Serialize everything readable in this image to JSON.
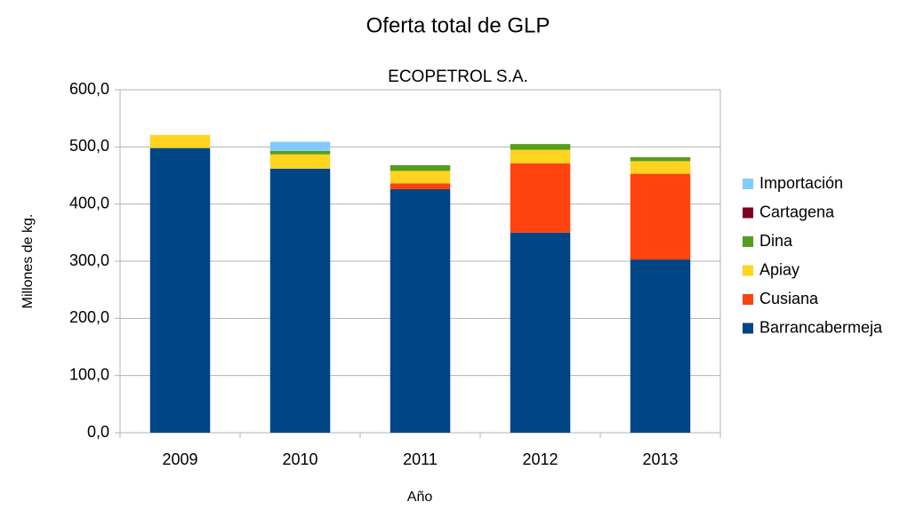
{
  "chart_data": {
    "type": "stacked_bar",
    "title": "Oferta total de GLP",
    "subtitle": "ECOPETROL S.A.",
    "x_label": "Año",
    "y_label": "Millones de kg.",
    "categories": [
      "2009",
      "2010",
      "2011",
      "2012",
      "2013"
    ],
    "series": [
      {
        "name": "Barrancabermeja",
        "color": "#004586",
        "values": [
          498,
          462,
          426,
          350,
          303
        ]
      },
      {
        "name": "Cusiana",
        "color": "#ff420e",
        "values": [
          0,
          0,
          10,
          121,
          150
        ]
      },
      {
        "name": "Apiay",
        "color": "#ffd320",
        "values": [
          23,
          25,
          22,
          24,
          22
        ]
      },
      {
        "name": "Dina",
        "color": "#579d1c",
        "values": [
          0,
          6,
          10,
          10,
          7
        ]
      },
      {
        "name": "Cartagena",
        "color": "#7e0021",
        "values": [
          0,
          0,
          0,
          0,
          0
        ]
      },
      {
        "name": "Importación",
        "color": "#83caff",
        "values": [
          0,
          16,
          0,
          0,
          0
        ]
      }
    ],
    "ylim": [
      0,
      600
    ],
    "yticks": [
      {
        "value": 0,
        "label": "0,0"
      },
      {
        "value": 100,
        "label": "100,0"
      },
      {
        "value": 200,
        "label": "200,0"
      },
      {
        "value": 300,
        "label": "300,0"
      },
      {
        "value": 400,
        "label": "400,0"
      },
      {
        "value": 500,
        "label": "500,0"
      },
      {
        "value": 600,
        "label": "600,0"
      }
    ],
    "grid": true,
    "legend": "right"
  }
}
